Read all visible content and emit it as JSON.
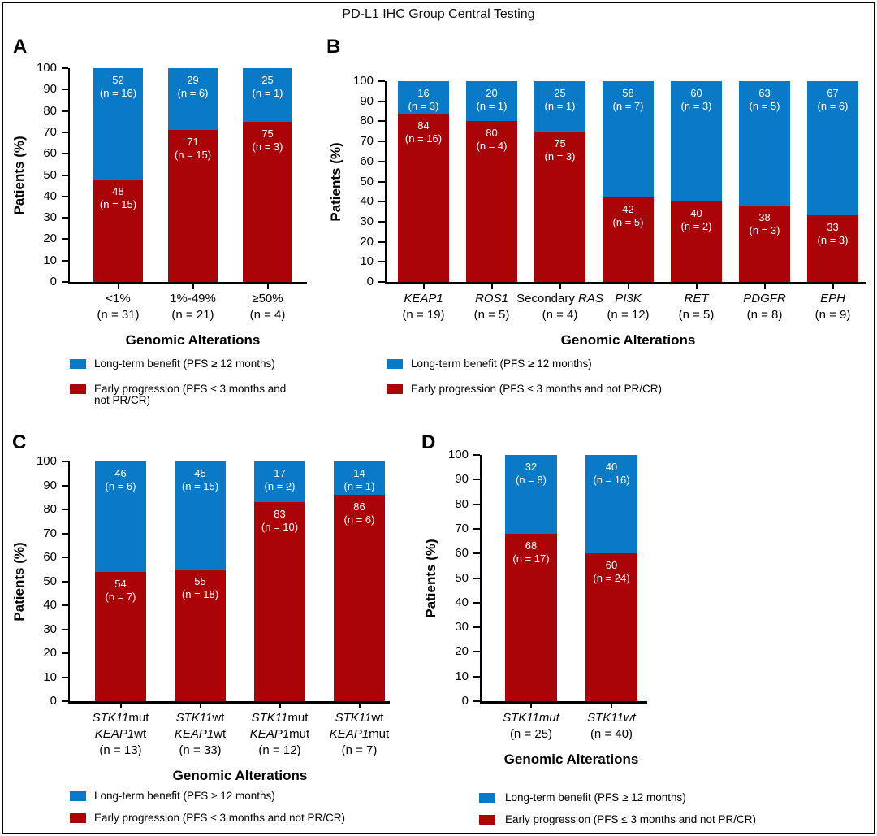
{
  "figure_title": "PD-L1 IHC Group Central Testing",
  "colors": {
    "blue": "#0B7AC6",
    "red": "#A90508",
    "axis": "#000000",
    "bar_text": "#FFFFFF"
  },
  "axis": {
    "ylabel": "Patients (%)",
    "xlabel": "Genomic Alterations",
    "yticks": [
      0,
      10,
      20,
      30,
      40,
      50,
      60,
      70,
      80,
      90,
      100
    ]
  },
  "legend": {
    "blue_label": "Long-term benefit (PFS ≥ 12 months)",
    "red_label": "Early progression (PFS ≤ 3 months and not PR/CR)",
    "red_label_wrapped": "Early progression (PFS ≤ 3 months and\nnot PR/CR)"
  },
  "chart_data": [
    {
      "panel": "A",
      "type": "bar",
      "stacked": true,
      "ylabel": "Patients (%)",
      "xlabel": "Genomic Alterations",
      "ylim": [
        0,
        100
      ],
      "categories": [
        "<1% (n = 31)",
        "1%-49% (n = 21)",
        "≥50% (n = 4)"
      ],
      "series": [
        {
          "name": "Long-term benefit (PFS ≥ 12 months)",
          "color": "blue",
          "values": [
            52,
            29,
            25
          ],
          "counts": [
            16,
            6,
            1
          ]
        },
        {
          "name": "Early progression (PFS ≤ 3 months and not PR/CR)",
          "color": "red",
          "values": [
            48,
            71,
            75
          ],
          "counts": [
            15,
            15,
            3
          ]
        }
      ],
      "categories_rich": [
        [
          [
            {
              "t": "<1%"
            }
          ],
          [
            {
              "t": "(n = 31)"
            }
          ]
        ],
        [
          [
            {
              "t": "1%-49%"
            }
          ],
          [
            {
              "t": "(n = 21)"
            }
          ]
        ],
        [
          [
            {
              "t": "≥50%"
            }
          ],
          [
            {
              "t": "(n = 4)"
            }
          ]
        ]
      ]
    },
    {
      "panel": "B",
      "type": "bar",
      "stacked": true,
      "ylabel": "Patients (%)",
      "xlabel": "Genomic Alterations",
      "ylim": [
        0,
        100
      ],
      "categories": [
        "KEAP1 (n = 19)",
        "ROS1 (n = 5)",
        "Secondary RAS (n = 4)",
        "PI3K (n = 12)",
        "RET (n = 5)",
        "PDGFR (n = 8)",
        "EPH (n = 9)"
      ],
      "series": [
        {
          "name": "Long-term benefit (PFS ≥ 12 months)",
          "color": "blue",
          "values": [
            16,
            20,
            25,
            58,
            60,
            63,
            67
          ],
          "counts": [
            3,
            1,
            1,
            7,
            3,
            5,
            6
          ]
        },
        {
          "name": "Early progression (PFS ≤ 3 months and not PR/CR)",
          "color": "red",
          "values": [
            84,
            80,
            75,
            42,
            40,
            38,
            33
          ],
          "counts": [
            16,
            4,
            3,
            5,
            2,
            3,
            3
          ]
        }
      ],
      "categories_rich": [
        [
          [
            {
              "t": "KEAP1",
              "i": 1
            }
          ],
          [
            {
              "t": "(n = 19)"
            }
          ]
        ],
        [
          [
            {
              "t": "ROS1",
              "i": 1
            }
          ],
          [
            {
              "t": "(n = 5)"
            }
          ]
        ],
        [
          [
            {
              "t": "Secondary "
            },
            {
              "t": "RAS",
              "i": 1
            }
          ],
          [
            {
              "t": "(n = 4)"
            }
          ]
        ],
        [
          [
            {
              "t": "PI3K",
              "i": 1
            }
          ],
          [
            {
              "t": "(n = 12)"
            }
          ]
        ],
        [
          [
            {
              "t": "RET",
              "i": 1
            }
          ],
          [
            {
              "t": "(n = 5)"
            }
          ]
        ],
        [
          [
            {
              "t": "PDGFR",
              "i": 1
            }
          ],
          [
            {
              "t": "(n = 8)"
            }
          ]
        ],
        [
          [
            {
              "t": "EPH",
              "i": 1
            }
          ],
          [
            {
              "t": "(n = 9)"
            }
          ]
        ]
      ]
    },
    {
      "panel": "C",
      "type": "bar",
      "stacked": true,
      "ylabel": "Patients (%)",
      "xlabel": "Genomic Alterations",
      "ylim": [
        0,
        100
      ],
      "categories": [
        "STK11mut KEAP1wt (n = 13)",
        "STK11wt KEAP1wt (n = 33)",
        "STK11mut KEAP1mut (n = 12)",
        "STK11wt KEAP1mut (n = 7)"
      ],
      "series": [
        {
          "name": "Long-term benefit (PFS ≥ 12 months)",
          "color": "blue",
          "values": [
            46,
            45,
            17,
            14
          ],
          "counts": [
            6,
            15,
            2,
            1
          ]
        },
        {
          "name": "Early progression (PFS ≤ 3 months and not PR/CR)",
          "color": "red",
          "values": [
            54,
            55,
            83,
            86
          ],
          "counts": [
            7,
            18,
            10,
            6
          ]
        }
      ],
      "categories_rich": [
        [
          [
            {
              "t": "STK11",
              "i": 1
            },
            {
              "t": "mut"
            }
          ],
          [
            {
              "t": "KEAP1",
              "i": 1
            },
            {
              "t": "wt"
            }
          ],
          [
            {
              "t": "(n = 13)"
            }
          ]
        ],
        [
          [
            {
              "t": "STK11",
              "i": 1
            },
            {
              "t": "wt"
            }
          ],
          [
            {
              "t": "KEAP1",
              "i": 1
            },
            {
              "t": "wt"
            }
          ],
          [
            {
              "t": "(n = 33)"
            }
          ]
        ],
        [
          [
            {
              "t": "STK11",
              "i": 1
            },
            {
              "t": "mut"
            }
          ],
          [
            {
              "t": "KEAP1",
              "i": 1
            },
            {
              "t": "mut"
            }
          ],
          [
            {
              "t": "(n = 12)"
            }
          ]
        ],
        [
          [
            {
              "t": "STK11",
              "i": 1
            },
            {
              "t": "wt"
            }
          ],
          [
            {
              "t": "KEAP1",
              "i": 1
            },
            {
              "t": "mut"
            }
          ],
          [
            {
              "t": "(n = 7)"
            }
          ]
        ]
      ]
    },
    {
      "panel": "D",
      "type": "bar",
      "stacked": true,
      "ylabel": "Patients (%)",
      "xlabel": "Genomic Alterations",
      "ylim": [
        0,
        100
      ],
      "categories": [
        "STK11mut (n = 25)",
        "STK11wt (n = 40)"
      ],
      "series": [
        {
          "name": "Long-term benefit (PFS ≥ 12 months)",
          "color": "blue",
          "values": [
            32,
            40
          ],
          "counts": [
            8,
            16
          ]
        },
        {
          "name": "Early progression (PFS ≤ 3 months and not PR/CR)",
          "color": "red",
          "values": [
            68,
            60
          ],
          "counts": [
            17,
            24
          ]
        }
      ],
      "categories_rich": [
        [
          [
            {
              "t": "STK11mut",
              "i": 1
            }
          ],
          [
            {
              "t": "(n = 25)"
            }
          ]
        ],
        [
          [
            {
              "t": "STK11wt",
              "i": 1
            }
          ],
          [
            {
              "t": "(n = 40)"
            }
          ]
        ]
      ]
    }
  ]
}
